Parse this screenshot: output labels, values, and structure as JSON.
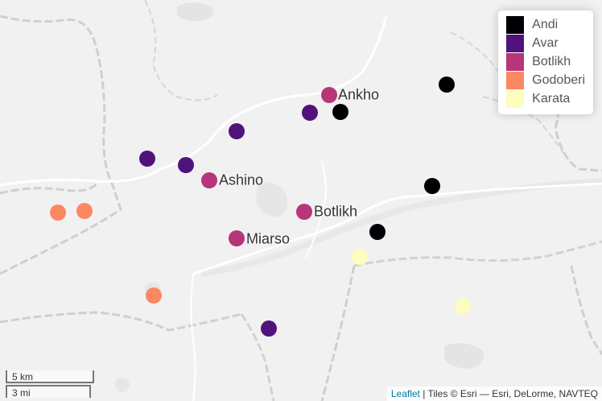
{
  "legend": {
    "items": [
      {
        "label": "Andi",
        "color": "#000004"
      },
      {
        "label": "Avar",
        "color": "#51127C"
      },
      {
        "label": "Botlikh",
        "color": "#B63679"
      },
      {
        "label": "Godoberi",
        "color": "#FB8861"
      },
      {
        "label": "Karata",
        "color": "#FCFDBF"
      }
    ]
  },
  "village_labels": {
    "ankho": "Ankho",
    "ashino": "Ashino",
    "botlikh": "Botlikh",
    "miarso": "Miarso"
  },
  "markers": [
    {
      "language": "Andi",
      "color": "#000004"
    },
    {
      "language": "Andi",
      "color": "#000004"
    },
    {
      "language": "Andi",
      "color": "#000004"
    },
    {
      "language": "Andi",
      "color": "#000004"
    },
    {
      "language": "Avar",
      "color": "#51127C"
    },
    {
      "language": "Avar",
      "color": "#51127C"
    },
    {
      "language": "Avar",
      "color": "#51127C"
    },
    {
      "language": "Avar",
      "color": "#51127C"
    },
    {
      "language": "Avar",
      "color": "#51127C"
    },
    {
      "language": "Botlikh",
      "color": "#B63679"
    },
    {
      "language": "Botlikh",
      "color": "#B63679"
    },
    {
      "language": "Botlikh",
      "color": "#B63679"
    },
    {
      "language": "Botlikh",
      "color": "#B63679"
    },
    {
      "language": "Godoberi",
      "color": "#FB8861"
    },
    {
      "language": "Godoberi",
      "color": "#FB8861"
    },
    {
      "language": "Godoberi",
      "color": "#FB8861"
    },
    {
      "language": "Karata",
      "color": "#FCFDBF"
    },
    {
      "language": "Karata",
      "color": "#FCFDBF"
    }
  ],
  "scale": {
    "km": "5 km",
    "mi": "3 mi"
  },
  "attribution": {
    "leaflet": "Leaflet",
    "rest": " | Tiles © Esri — Esri, DeLorme, NAVTEQ"
  }
}
